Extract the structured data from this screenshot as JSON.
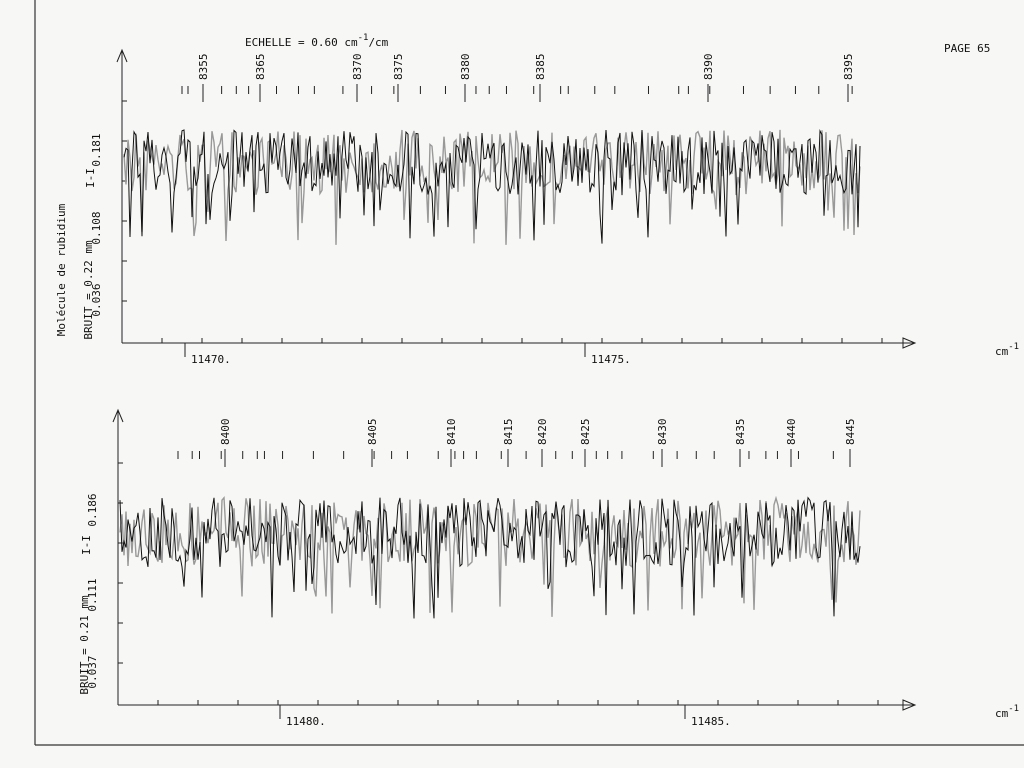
{
  "header": {
    "scale": {
      "prefix": "ECHELLE = 0.60 cm",
      "exp": "-1",
      "suffix": "/cm"
    },
    "page": "PAGE 65",
    "molecule": "Molécule de rubidium"
  },
  "panels": [
    {
      "peaks": [
        "8355",
        "8365",
        "8370",
        "8375",
        "8380",
        "8385",
        "8390",
        "8395"
      ],
      "yticks": [
        "0.181",
        "0.108",
        "0.036"
      ],
      "intensity": "I-I",
      "noise": "BRUIT = 0.22 mm",
      "xticks": [
        "11470.",
        "11475."
      ],
      "unit": "cm",
      "unit_exp": "-1"
    },
    {
      "peaks": [
        "8400",
        "8405",
        "8410",
        "8415",
        "8420",
        "8425",
        "8430",
        "8435",
        "8440",
        "8445"
      ],
      "yticks": [
        "0.186",
        "0.111",
        "0.037"
      ],
      "intensity": "I-I",
      "noise": "BRUIT = 0.21 mm",
      "xticks": [
        "11480.",
        "11485."
      ],
      "unit": "cm",
      "unit_exp": "-1"
    }
  ]
}
